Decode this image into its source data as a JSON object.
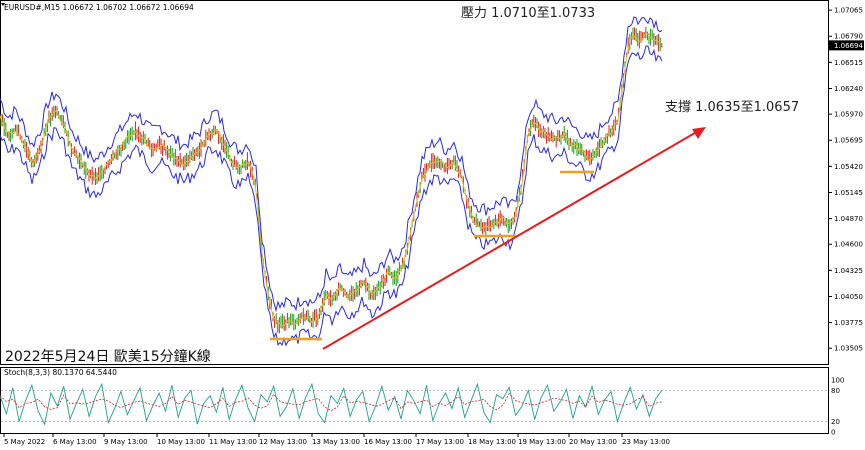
{
  "header": {
    "symbol_line": "EURUSD#,M15  1.06672 1.06702 1.06672 1.06694",
    "stoch_line": "Stoch(8,3,3) 80.1370 64.5440"
  },
  "annotations": {
    "resistance": "壓力 1.0710至1.0733",
    "support": "支撐 1.0635至1.0657",
    "date_label": "2022年5月24日 歐美15分鐘K線"
  },
  "chart_data": [
    {
      "type": "line",
      "name": "price",
      "title": "",
      "y_ticks": [
        "1.07065",
        "1.06790",
        "1.06515",
        "1.06240",
        "1.05970",
        "1.05695",
        "1.05420",
        "1.05145",
        "1.04870",
        "1.04600",
        "1.04325",
        "1.04050",
        "1.03775",
        "1.03505"
      ],
      "current_price": "1.06694",
      "x_ticks": [
        "5 May 2022",
        "6 May 13:00",
        "9 May 13:00",
        "10 May 13:00",
        "11 May 13:00",
        "12 May 13:00",
        "13 May 13:00",
        "16 May 13:00",
        "17 May 13:00",
        "18 May 13:00",
        "19 May 13:00",
        "20 May 13:00",
        "23 May 13:00"
      ],
      "ylim": [
        1.0336,
        1.0714
      ],
      "path_points": [
        [
          0,
          1.0594
        ],
        [
          8,
          1.0575
        ],
        [
          16,
          1.0582
        ],
        [
          24,
          1.0565
        ],
        [
          32,
          1.0545
        ],
        [
          40,
          1.056
        ],
        [
          48,
          1.059
        ],
        [
          56,
          1.06
        ],
        [
          64,
          1.0585
        ],
        [
          72,
          1.056
        ],
        [
          80,
          1.0548
        ],
        [
          88,
          1.0535
        ],
        [
          96,
          1.053
        ],
        [
          104,
          1.0538
        ],
        [
          112,
          1.055
        ],
        [
          120,
          1.056
        ],
        [
          128,
          1.0572
        ],
        [
          136,
          1.058
        ],
        [
          144,
          1.057
        ],
        [
          152,
          1.056
        ],
        [
          160,
          1.0565
        ],
        [
          168,
          1.0558
        ],
        [
          176,
          1.055
        ],
        [
          184,
          1.0545
        ],
        [
          192,
          1.0552
        ],
        [
          200,
          1.056
        ],
        [
          208,
          1.0575
        ],
        [
          216,
          1.058
        ],
        [
          224,
          1.0565
        ],
        [
          232,
          1.0545
        ],
        [
          240,
          1.054
        ],
        [
          248,
          1.0548
        ],
        [
          256,
          1.052
        ],
        [
          262,
          1.045
        ],
        [
          268,
          1.041
        ],
        [
          274,
          1.038
        ],
        [
          280,
          1.0375
        ],
        [
          288,
          1.038
        ],
        [
          296,
          1.0378
        ],
        [
          304,
          1.0385
        ],
        [
          312,
          1.038
        ],
        [
          320,
          1.0385
        ],
        [
          326,
          1.041
        ],
        [
          332,
          1.04
        ],
        [
          340,
          1.0415
        ],
        [
          348,
          1.0405
        ],
        [
          356,
          1.041
        ],
        [
          364,
          1.042
        ],
        [
          372,
          1.0405
        ],
        [
          380,
          1.0415
        ],
        [
          388,
          1.043
        ],
        [
          396,
          1.0425
        ],
        [
          404,
          1.044
        ],
        [
          410,
          1.047
        ],
        [
          416,
          1.05
        ],
        [
          422,
          1.053
        ],
        [
          430,
          1.0545
        ],
        [
          438,
          1.055
        ],
        [
          446,
          1.054
        ],
        [
          454,
          1.0548
        ],
        [
          462,
          1.053
        ],
        [
          468,
          1.05
        ],
        [
          474,
          1.0485
        ],
        [
          480,
          1.048
        ],
        [
          486,
          1.0478
        ],
        [
          494,
          1.0482
        ],
        [
          502,
          1.0487
        ],
        [
          510,
          1.048
        ],
        [
          516,
          1.0492
        ],
        [
          522,
          1.0525
        ],
        [
          528,
          1.0575
        ],
        [
          534,
          1.059
        ],
        [
          540,
          1.058
        ],
        [
          548,
          1.0575
        ],
        [
          556,
          1.057
        ],
        [
          564,
          1.0575
        ],
        [
          572,
          1.0565
        ],
        [
          580,
          1.056
        ],
        [
          588,
          1.055
        ],
        [
          596,
          1.0555
        ],
        [
          604,
          1.057
        ],
        [
          612,
          1.058
        ],
        [
          618,
          1.059
        ],
        [
          624,
          1.064
        ],
        [
          628,
          1.067
        ],
        [
          634,
          1.068
        ],
        [
          640,
          1.0675
        ],
        [
          646,
          1.0682
        ],
        [
          652,
          1.0678
        ],
        [
          658,
          1.0672
        ],
        [
          662,
          1.0669
        ]
      ]
    },
    {
      "type": "line",
      "name": "stochastic",
      "title": "",
      "ylim": [
        0,
        100
      ],
      "y_ticks": [
        "100",
        "80",
        "20",
        "0"
      ],
      "levels": [
        80,
        20
      ],
      "values": [
        70,
        35,
        85,
        20,
        60,
        90,
        40,
        15,
        75,
        50,
        88,
        25,
        55,
        82,
        30,
        68,
        92,
        18,
        45,
        78,
        33,
        60,
        85,
        22,
        50,
        75,
        40,
        90,
        28,
        65,
        80,
        15,
        55,
        70,
        38,
        86,
        24,
        62,
        90,
        45,
        20,
        72,
        58,
        88,
        30,
        48,
        83,
        26,
        66,
        92,
        35,
        18,
        70,
        55,
        84,
        30,
        62,
        78,
        20,
        50,
        88,
        42,
        68,
        25,
        80,
        60,
        35,
        90,
        22,
        55,
        75,
        45,
        85,
        28,
        60,
        92,
        38,
        18,
        72,
        64,
        86,
        32,
        50,
        80,
        24,
        66,
        90,
        40,
        58,
        82,
        26,
        70,
        48,
        88,
        34,
        62,
        78,
        20,
        56,
        86,
        44,
        72,
        30,
        64,
        80
      ]
    }
  ]
}
